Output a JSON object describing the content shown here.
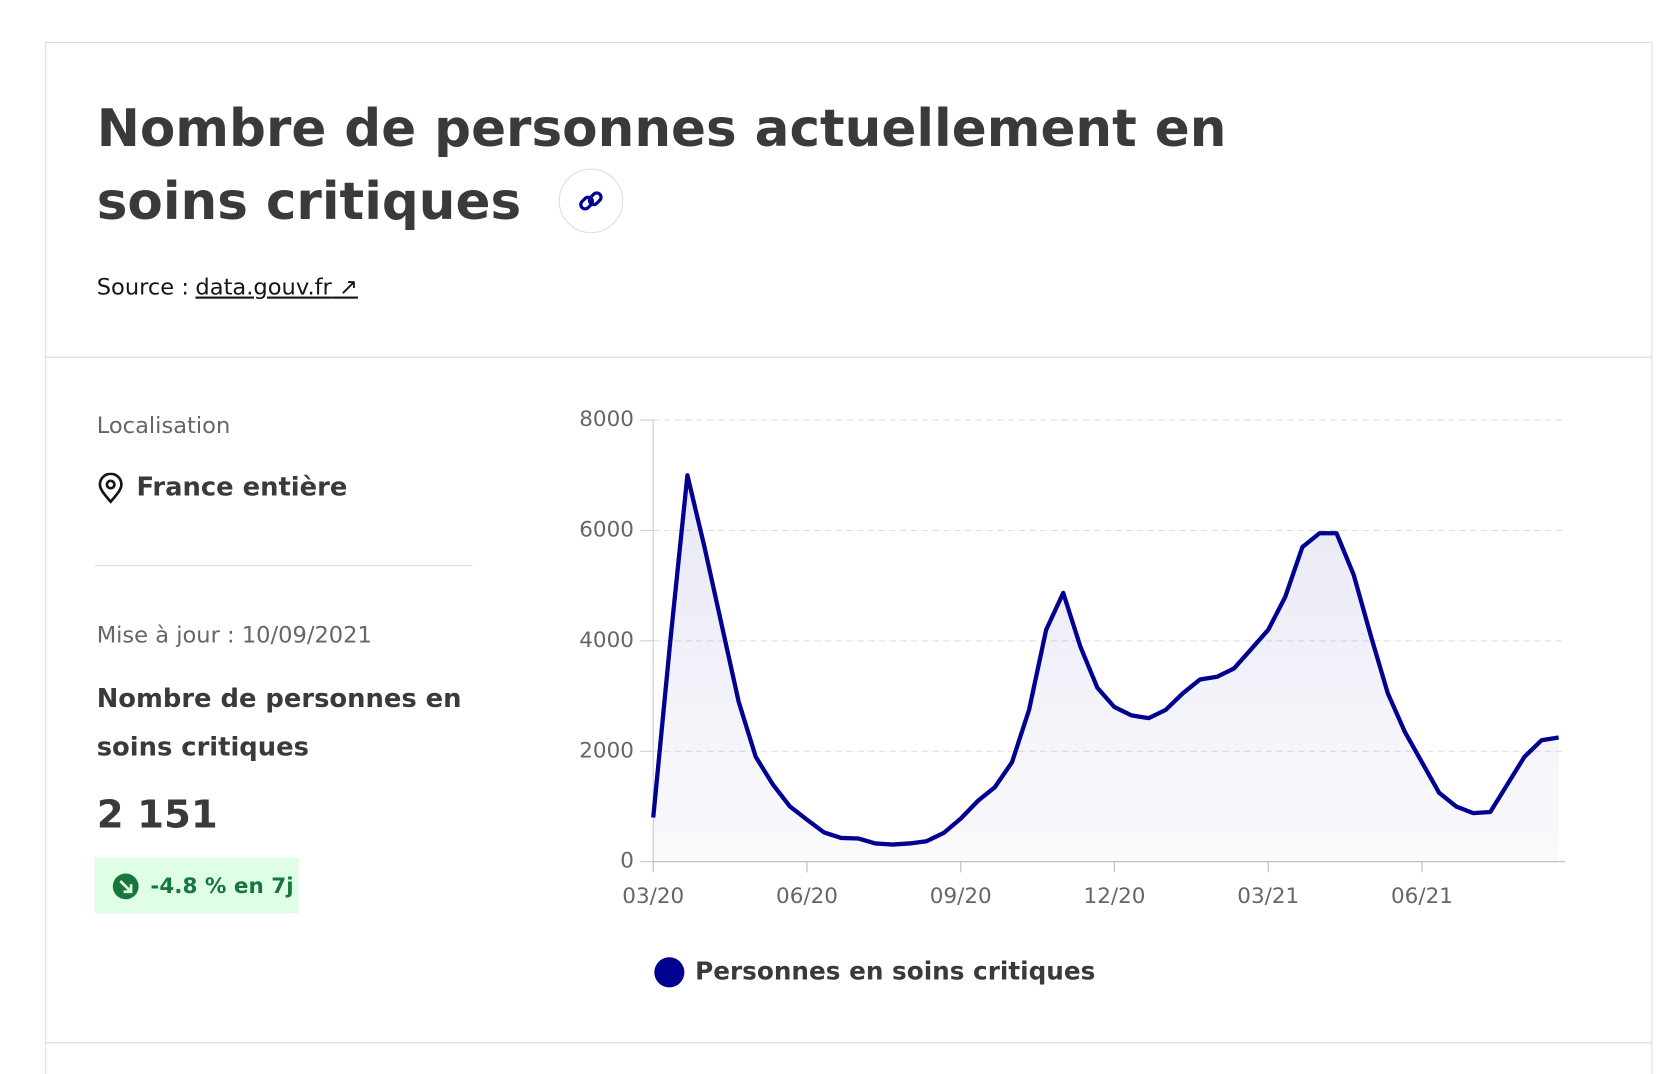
{
  "header": {
    "title": "Nombre de personnes actuellement en soins critiques",
    "source_label": "Source :",
    "source_link": "data.gouv.fr"
  },
  "sidebar": {
    "location_label": "Localisation",
    "location": "France entière",
    "update": "Mise à jour : 10/09/2021",
    "indicator_label": "Nombre de personnes en soins critiques",
    "indicator_value": "2 151",
    "change": "-4.8 % en 7j"
  },
  "chart_data": {
    "type": "line",
    "categories": [
      "03/20",
      null,
      null,
      null,
      null,
      null,
      null,
      null,
      null,
      "06/20",
      null,
      null,
      null,
      null,
      null,
      null,
      null,
      null,
      "09/20",
      null,
      null,
      null,
      null,
      null,
      null,
      null,
      null,
      "12/20",
      null,
      null,
      null,
      null,
      null,
      null,
      null,
      null,
      "03/21",
      null,
      null,
      null,
      null,
      null,
      null,
      null,
      null,
      "06/21",
      null,
      null,
      null,
      null,
      null,
      null,
      null,
      null
    ],
    "series": [
      {
        "name": "Personnes en soins critiques",
        "color": "#000091",
        "values": [
          800,
          4000,
          7000,
          5700,
          4300,
          2900,
          1900,
          1400,
          1000,
          760,
          530,
          430,
          420,
          330,
          310,
          330,
          370,
          520,
          780,
          1100,
          1350,
          1800,
          2750,
          4200,
          4870,
          3900,
          3150,
          2800,
          2650,
          2600,
          2750,
          3050,
          3300,
          3350,
          3500,
          3850,
          4200,
          4800,
          5700,
          5950,
          5950,
          5200,
          4100,
          3050,
          2350,
          1800,
          1250,
          1000,
          880,
          900,
          1400,
          1900,
          2200,
          2250
        ]
      }
    ],
    "ylim": [
      0,
      8000
    ],
    "yticks": [
      0,
      2000,
      4000,
      6000,
      8000
    ],
    "grid": true
  }
}
